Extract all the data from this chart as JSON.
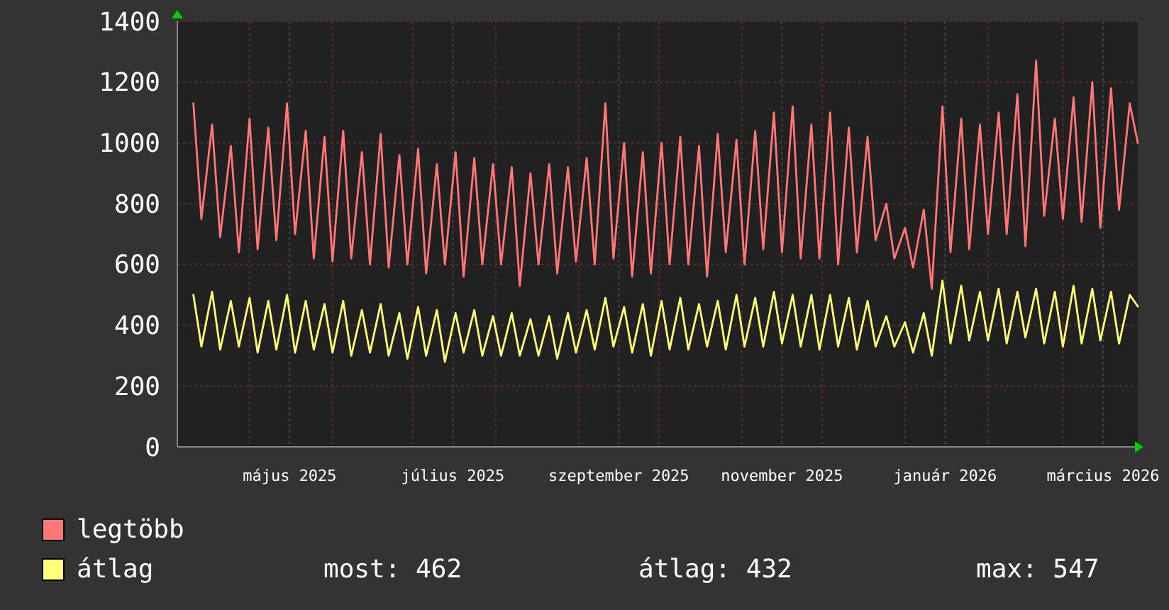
{
  "chart_data": {
    "type": "line",
    "legend": "bottom",
    "grid": true,
    "xlim": [
      "2025-04-04",
      "2026-03-29"
    ],
    "ylim": [
      0,
      1400
    ],
    "yticks": [
      0,
      200,
      400,
      600,
      800,
      1000,
      1200,
      1400
    ],
    "xticks": [
      {
        "value": "2025-05-01",
        "label": null
      },
      {
        "value": "2025-05-16",
        "label": "május 2025"
      },
      {
        "value": "2025-06-01",
        "label": null
      },
      {
        "value": "2025-07-01",
        "label": null
      },
      {
        "value": "2025-07-16",
        "label": "július 2025"
      },
      {
        "value": "2025-08-01",
        "label": null
      },
      {
        "value": "2025-09-01",
        "label": null
      },
      {
        "value": "2025-09-16",
        "label": "szeptember 2025"
      },
      {
        "value": "2025-10-01",
        "label": null
      },
      {
        "value": "2025-11-01",
        "label": null
      },
      {
        "value": "2025-11-16",
        "label": "november 2025"
      },
      {
        "value": "2025-12-01",
        "label": null
      },
      {
        "value": "2026-01-01",
        "label": null
      },
      {
        "value": "2026-01-16",
        "label": "január 2026"
      },
      {
        "value": "2026-02-01",
        "label": null
      },
      {
        "value": "2026-03-01",
        "label": null
      },
      {
        "value": "2026-03-16",
        "label": "március 2026"
      }
    ],
    "x": [
      "2025-04-10",
      "2025-04-13",
      "2025-04-17",
      "2025-04-20",
      "2025-04-24",
      "2025-04-27",
      "2025-05-01",
      "2025-05-04",
      "2025-05-08",
      "2025-05-11",
      "2025-05-15",
      "2025-05-18",
      "2025-05-22",
      "2025-05-25",
      "2025-05-29",
      "2025-06-01",
      "2025-06-05",
      "2025-06-08",
      "2025-06-12",
      "2025-06-15",
      "2025-06-19",
      "2025-06-22",
      "2025-06-26",
      "2025-06-29",
      "2025-07-03",
      "2025-07-06",
      "2025-07-10",
      "2025-07-13",
      "2025-07-17",
      "2025-07-20",
      "2025-07-24",
      "2025-07-27",
      "2025-07-31",
      "2025-08-03",
      "2025-08-07",
      "2025-08-10",
      "2025-08-14",
      "2025-08-17",
      "2025-08-21",
      "2025-08-24",
      "2025-08-28",
      "2025-08-31",
      "2025-09-04",
      "2025-09-07",
      "2025-09-11",
      "2025-09-14",
      "2025-09-18",
      "2025-09-21",
      "2025-09-25",
      "2025-09-28",
      "2025-10-02",
      "2025-10-05",
      "2025-10-09",
      "2025-10-12",
      "2025-10-16",
      "2025-10-19",
      "2025-10-23",
      "2025-10-26",
      "2025-10-30",
      "2025-11-02",
      "2025-11-06",
      "2025-11-09",
      "2025-11-13",
      "2025-11-16",
      "2025-11-20",
      "2025-11-23",
      "2025-11-27",
      "2025-11-30",
      "2025-12-04",
      "2025-12-07",
      "2025-12-11",
      "2025-12-14",
      "2025-12-18",
      "2025-12-21",
      "2025-12-25",
      "2025-12-28",
      "2026-01-01",
      "2026-01-04",
      "2026-01-08",
      "2026-01-11",
      "2026-01-15",
      "2026-01-18",
      "2026-01-22",
      "2026-01-25",
      "2026-01-29",
      "2026-02-01",
      "2026-02-05",
      "2026-02-08",
      "2026-02-12",
      "2026-02-15",
      "2026-02-19",
      "2026-02-22",
      "2026-02-26",
      "2026-03-01",
      "2026-03-05",
      "2026-03-08",
      "2026-03-12",
      "2026-03-15",
      "2026-03-19",
      "2026-03-22",
      "2026-03-26",
      "2026-03-29"
    ],
    "series": [
      {
        "name": "legtöbb",
        "color": "#ff7777",
        "values": [
          1130,
          750,
          1060,
          690,
          990,
          640,
          1080,
          650,
          1050,
          680,
          1130,
          700,
          1040,
          620,
          1020,
          610,
          1040,
          620,
          970,
          600,
          1030,
          590,
          960,
          600,
          980,
          570,
          930,
          600,
          970,
          560,
          950,
          600,
          930,
          600,
          920,
          530,
          900,
          600,
          930,
          570,
          920,
          610,
          950,
          600,
          1130,
          620,
          1000,
          560,
          970,
          570,
          1000,
          600,
          1020,
          600,
          990,
          560,
          1030,
          640,
          1010,
          600,
          1040,
          650,
          1100,
          640,
          1120,
          620,
          1060,
          620,
          1100,
          600,
          1050,
          640,
          1020,
          680,
          800,
          620,
          720,
          590,
          780,
          520,
          1120,
          640,
          1080,
          650,
          1060,
          700,
          1100,
          700,
          1160,
          660,
          1270,
          760,
          1080,
          750,
          1150,
          740,
          1200,
          720,
          1180,
          780,
          1130,
          1000
        ]
      },
      {
        "name": "átlag",
        "color": "#ffff77",
        "values": [
          500,
          330,
          510,
          320,
          480,
          330,
          490,
          310,
          480,
          320,
          500,
          310,
          480,
          320,
          470,
          310,
          480,
          300,
          450,
          310,
          470,
          300,
          440,
          290,
          460,
          300,
          450,
          280,
          440,
          310,
          450,
          300,
          430,
          300,
          440,
          300,
          420,
          300,
          430,
          290,
          440,
          310,
          450,
          320,
          490,
          330,
          460,
          310,
          470,
          300,
          480,
          320,
          490,
          320,
          470,
          330,
          480,
          320,
          500,
          330,
          490,
          330,
          510,
          340,
          500,
          330,
          500,
          320,
          500,
          330,
          490,
          320,
          480,
          330,
          430,
          330,
          410,
          310,
          440,
          300,
          547,
          340,
          530,
          350,
          510,
          350,
          520,
          340,
          510,
          360,
          520,
          340,
          510,
          330,
          530,
          340,
          520,
          350,
          510,
          340,
          500,
          462
        ]
      }
    ],
    "annotations": [
      "most: 462",
      "átlag: 432",
      "max: 547"
    ]
  }
}
